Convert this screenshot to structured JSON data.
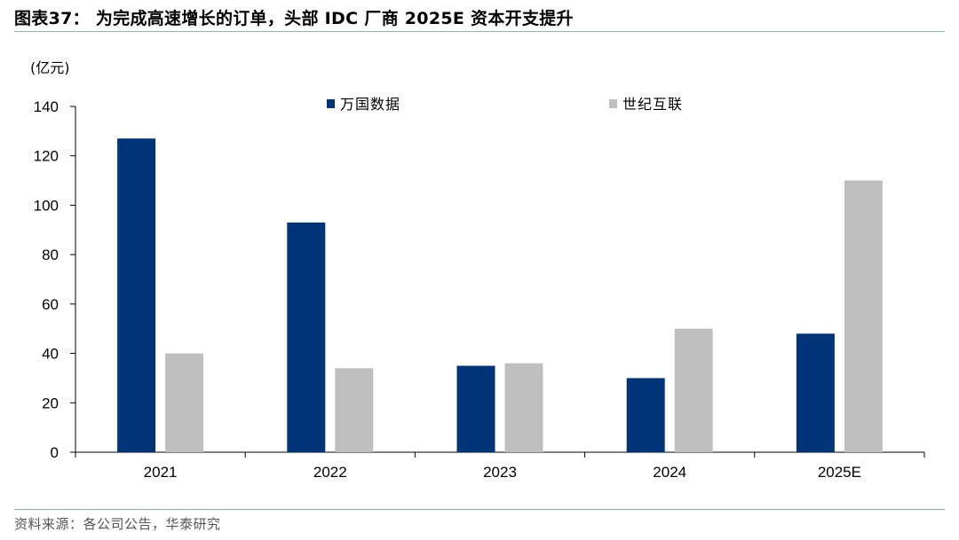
{
  "figure": {
    "title": "图表37：  为完成高速增长的订单，头部 IDC 厂商 2025E 资本开支提升",
    "source": "资料来源：各公司公告，华泰研究"
  },
  "chart_data": {
    "type": "bar",
    "title": "图表37：  为完成高速增长的订单，头部 IDC 厂商 2025E 资本开支提升",
    "ylabel": "(亿元)",
    "xlabel": "",
    "categories": [
      "2021",
      "2022",
      "2023",
      "2024",
      "2025E"
    ],
    "series": [
      {
        "name": "万国数据",
        "color": "#003478",
        "values": [
          127,
          93,
          35,
          30,
          48
        ]
      },
      {
        "name": "世纪互联",
        "color": "#bfbfbf",
        "values": [
          40,
          34,
          36,
          50,
          110
        ]
      }
    ],
    "ylim": [
      0,
      140
    ],
    "yticks": [
      0,
      20,
      40,
      60,
      80,
      100,
      120,
      140
    ],
    "grid": false,
    "legend": "top-center"
  }
}
